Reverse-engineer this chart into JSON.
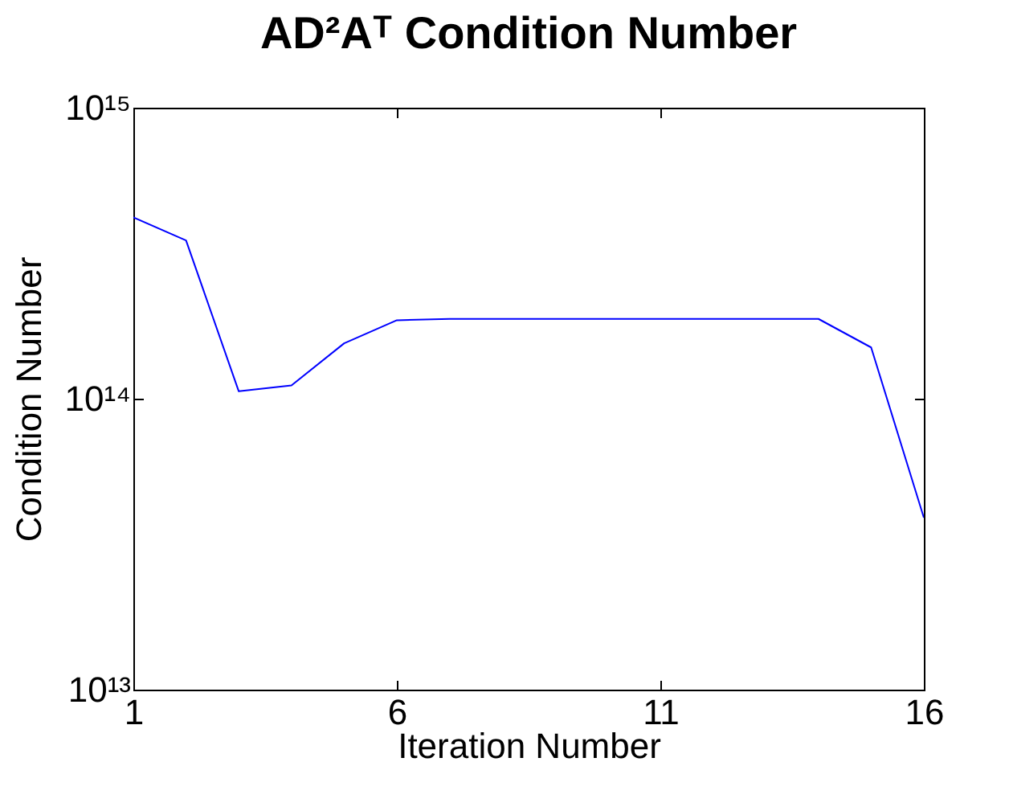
{
  "chart_data": {
    "type": "line",
    "title": "AD²Aᵀ Condition Number",
    "xlabel": "Iteration Number",
    "ylabel": "Condition Number",
    "x": [
      1,
      2,
      3,
      4,
      5,
      6,
      7,
      8,
      9,
      10,
      11,
      12,
      13,
      14,
      15,
      16
    ],
    "series": [
      {
        "color": "#0000ff",
        "values": [
          420000000000000.0,
          350000000000000.0,
          106000000000000.0,
          111000000000000.0,
          155000000000000.0,
          186000000000000.0,
          188000000000000.0,
          188000000000000.0,
          188000000000000.0,
          188000000000000.0,
          188000000000000.0,
          188000000000000.0,
          188000000000000.0,
          188000000000000.0,
          150000000000000.0,
          39000000000000.0
        ]
      }
    ],
    "xlim": [
      1,
      16
    ],
    "xticks": [
      1,
      6,
      11,
      16
    ],
    "ylim": [
      10000000000000.0,
      1000000000000000.0
    ],
    "yticks": [
      {
        "value": 10000000000000.0,
        "label": "10¹³"
      },
      {
        "value": 100000000000000.0,
        "label": "10¹⁴"
      },
      {
        "value": 1000000000000000.0,
        "label": "10¹⁵"
      }
    ],
    "log": "y",
    "grid": false,
    "marker": "none",
    "line_style": "solid"
  }
}
